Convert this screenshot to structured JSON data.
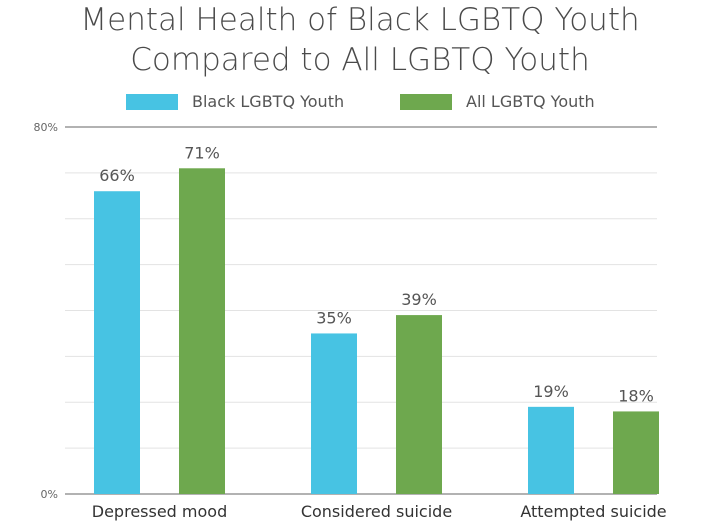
{
  "chart_data": {
    "type": "bar",
    "title": "Mental Health of Black LGBTQ Youth Compared to All LGBTQ Youth",
    "title_lines": [
      "Mental Health of Black LGBTQ Youth",
      "Compared to All LGBTQ Youth"
    ],
    "categories": [
      "Depressed mood",
      "Considered suicide",
      "Attempted suicide"
    ],
    "series": [
      {
        "name": "Black LGBTQ Youth",
        "values": [
          66,
          35,
          19
        ],
        "color": "#47C3E3"
      },
      {
        "name": "All LGBTQ Youth",
        "values": [
          71,
          39,
          18
        ],
        "color": "#6EA84E"
      }
    ],
    "data_labels": [
      [
        "66%",
        "35%",
        "19%"
      ],
      [
        "71%",
        "39%",
        "18%"
      ]
    ],
    "ylim": [
      0,
      80
    ],
    "y_tick_labels": [
      "0%",
      "80%"
    ],
    "grid": true,
    "legend_position": "top",
    "xlabel": "",
    "ylabel": ""
  }
}
